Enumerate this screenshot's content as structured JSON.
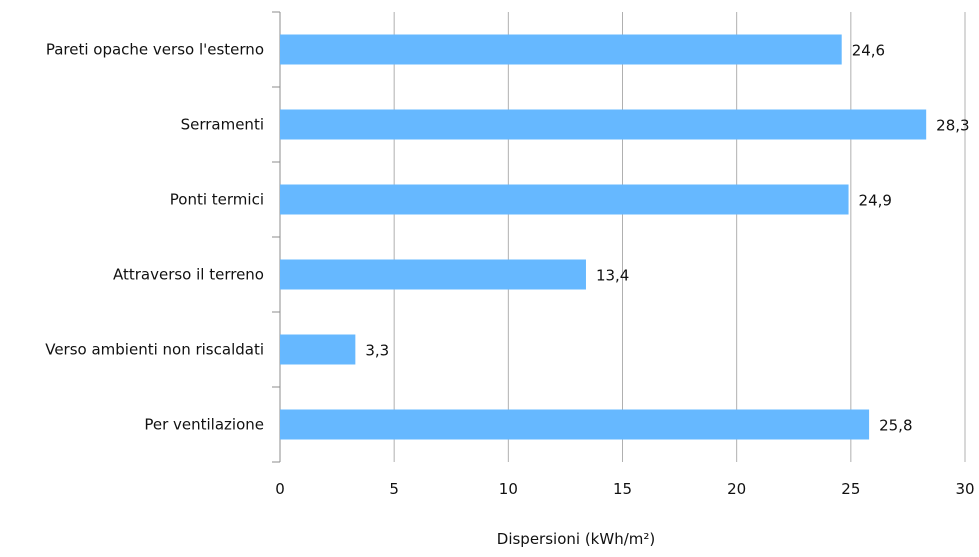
{
  "chart_data": {
    "type": "bar",
    "orientation": "horizontal",
    "categories": [
      "Pareti opache verso l'esterno",
      "Serramenti",
      "Ponti termici",
      "Attraverso il terreno",
      "Verso ambienti non riscaldati",
      "Per ventilazione"
    ],
    "values": [
      24.6,
      28.3,
      24.9,
      13.4,
      3.3,
      25.8
    ],
    "data_labels": [
      "24,6",
      "28,3",
      "24,9",
      "13,4",
      "3,3",
      "25,8"
    ],
    "xlabel": "Dispersioni (kWh/m²)",
    "ylabel": "",
    "title": "",
    "xlim": [
      0,
      30
    ],
    "x_ticks": [
      0,
      5,
      10,
      15,
      20,
      25,
      30
    ],
    "x_tick_labels": [
      "0",
      "5",
      "10",
      "15",
      "20",
      "25",
      "30"
    ],
    "grid": "vertical",
    "legend": "none",
    "colors": {
      "bar": "#66b8ff",
      "grid": "#b0b0b0",
      "axis": "#8c8c8c",
      "text": "#111111"
    }
  }
}
